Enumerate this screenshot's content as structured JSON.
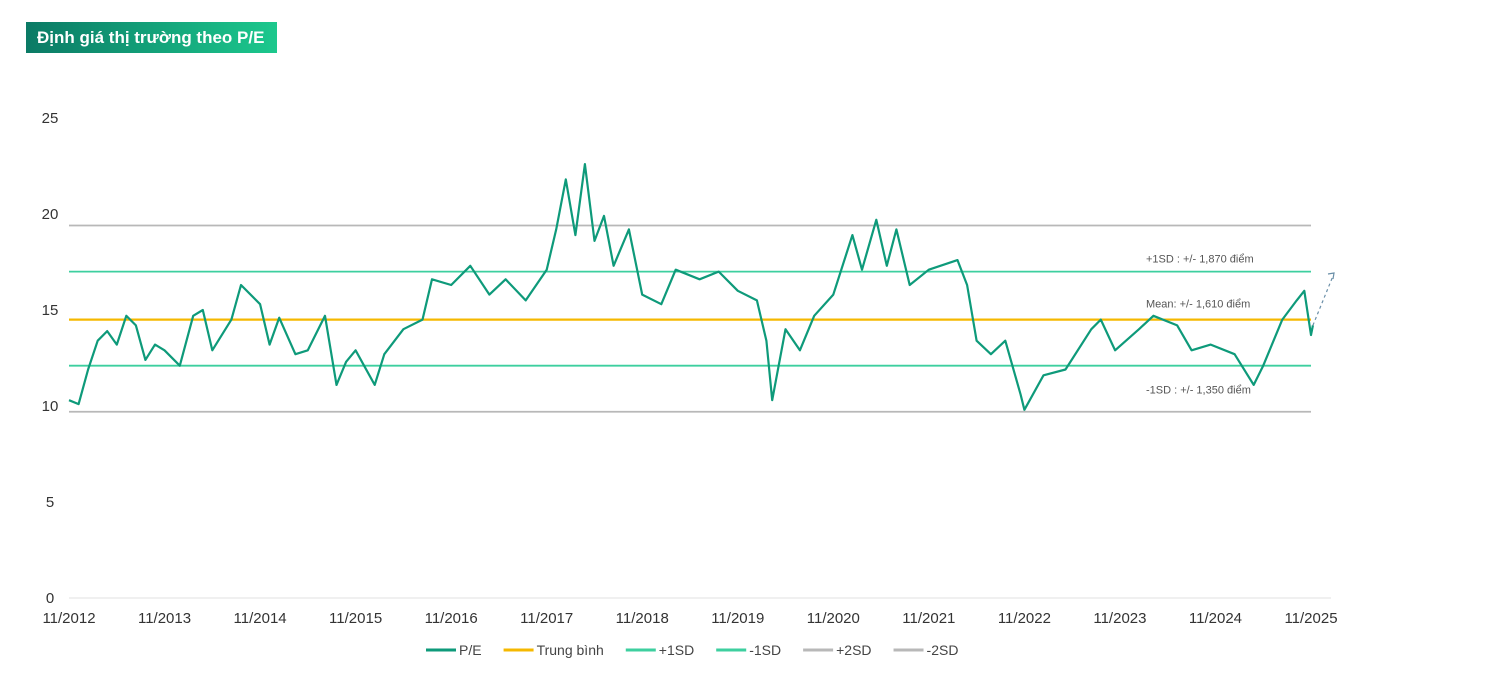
{
  "title": "Định giá thị trường theo P/E",
  "chart_data": {
    "type": "line",
    "title": "Định giá thị trường theo P/E",
    "xlabel": "",
    "ylabel": "",
    "ylim": [
      0,
      25
    ],
    "yticks": [
      0,
      5,
      10,
      15,
      20,
      25
    ],
    "xticks": [
      "11/2012",
      "11/2013",
      "11/2014",
      "11/2015",
      "11/2016",
      "11/2017",
      "11/2018",
      "11/2019",
      "11/2020",
      "11/2021",
      "11/2022",
      "11/2023",
      "11/2024",
      "11/2025"
    ],
    "x_unit": "years since 11/2012",
    "grid": false,
    "legend_position": "bottom",
    "series": [
      {
        "name": "P/E",
        "color": "#0e9a7a",
        "points": [
          [
            0,
            10.3
          ],
          [
            0.1,
            10.1
          ],
          [
            0.2,
            11.9
          ],
          [
            0.3,
            13.4
          ],
          [
            0.4,
            13.9
          ],
          [
            0.5,
            13.2
          ],
          [
            0.6,
            14.7
          ],
          [
            0.7,
            14.2
          ],
          [
            0.8,
            12.4
          ],
          [
            0.9,
            13.2
          ],
          [
            1.0,
            12.9
          ],
          [
            1.16,
            12.1
          ],
          [
            1.3,
            14.7
          ],
          [
            1.4,
            15.0
          ],
          [
            1.5,
            12.9
          ],
          [
            1.7,
            14.5
          ],
          [
            1.8,
            16.3
          ],
          [
            2.0,
            15.3
          ],
          [
            2.1,
            13.2
          ],
          [
            2.2,
            14.6
          ],
          [
            2.37,
            12.7
          ],
          [
            2.5,
            12.9
          ],
          [
            2.68,
            14.7
          ],
          [
            2.8,
            11.1
          ],
          [
            2.9,
            12.3
          ],
          [
            3.0,
            12.9
          ],
          [
            3.2,
            11.1
          ],
          [
            3.3,
            12.7
          ],
          [
            3.5,
            14.0
          ],
          [
            3.7,
            14.5
          ],
          [
            3.8,
            16.6
          ],
          [
            4.0,
            16.3
          ],
          [
            4.2,
            17.3
          ],
          [
            4.4,
            15.8
          ],
          [
            4.57,
            16.6
          ],
          [
            4.78,
            15.5
          ],
          [
            5.0,
            17.1
          ],
          [
            5.1,
            19.2
          ],
          [
            5.2,
            21.8
          ],
          [
            5.3,
            18.9
          ],
          [
            5.4,
            22.6
          ],
          [
            5.5,
            18.6
          ],
          [
            5.6,
            19.9
          ],
          [
            5.7,
            17.3
          ],
          [
            5.86,
            19.2
          ],
          [
            6.0,
            15.8
          ],
          [
            6.2,
            15.3
          ],
          [
            6.35,
            17.1
          ],
          [
            6.6,
            16.6
          ],
          [
            6.8,
            17.0
          ],
          [
            7.0,
            16.0
          ],
          [
            7.2,
            15.5
          ],
          [
            7.3,
            13.4
          ],
          [
            7.36,
            10.3
          ],
          [
            7.5,
            14.0
          ],
          [
            7.65,
            12.9
          ],
          [
            7.8,
            14.7
          ],
          [
            8.0,
            15.8
          ],
          [
            8.2,
            18.9
          ],
          [
            8.3,
            17.1
          ],
          [
            8.45,
            19.7
          ],
          [
            8.56,
            17.3
          ],
          [
            8.66,
            19.2
          ],
          [
            8.8,
            16.3
          ],
          [
            9.0,
            17.1
          ],
          [
            9.3,
            17.6
          ],
          [
            9.4,
            16.3
          ],
          [
            9.5,
            13.4
          ],
          [
            9.65,
            12.7
          ],
          [
            9.8,
            13.4
          ],
          [
            9.96,
            10.6
          ],
          [
            10.0,
            9.8
          ],
          [
            10.2,
            11.6
          ],
          [
            10.43,
            11.9
          ],
          [
            10.7,
            14.0
          ],
          [
            10.8,
            14.5
          ],
          [
            10.95,
            12.9
          ],
          [
            11.2,
            14.0
          ],
          [
            11.35,
            14.7
          ],
          [
            11.6,
            14.2
          ],
          [
            11.75,
            12.9
          ],
          [
            11.95,
            13.2
          ],
          [
            12.2,
            12.7
          ],
          [
            12.4,
            11.1
          ],
          [
            12.5,
            12.1
          ],
          [
            12.7,
            14.5
          ],
          [
            12.85,
            15.5
          ],
          [
            12.93,
            16.0
          ],
          [
            13.0,
            13.7
          ],
          [
            13.02,
            14.2
          ]
        ]
      },
      {
        "name": "Trung bình",
        "color": "#f5b800",
        "value": 14.5
      },
      {
        "name": "+1SD",
        "color": "#3dcf9f",
        "value": 17.0
      },
      {
        "name": "-1SD",
        "color": "#3dcf9f",
        "value": 12.1
      },
      {
        "name": "+2SD",
        "color": "#b8b8b8",
        "value": 19.4
      },
      {
        "name": "-2SD",
        "color": "#b8b8b8",
        "value": 9.7
      }
    ],
    "annotations": [
      "+1SD : +/- 1,870 điểm",
      "Mean: +/- 1,610 điểm",
      "-1SD  : +/- 1,350 điểm"
    ]
  }
}
